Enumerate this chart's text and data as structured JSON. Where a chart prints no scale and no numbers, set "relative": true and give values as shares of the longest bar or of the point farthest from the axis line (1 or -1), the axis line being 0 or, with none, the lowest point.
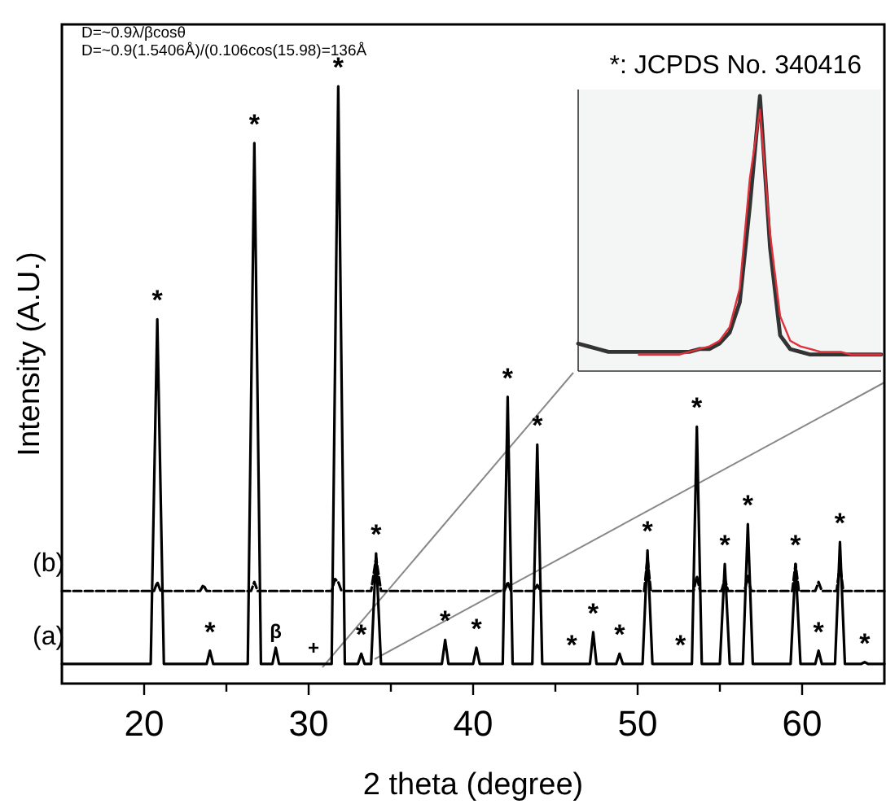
{
  "chart_data": [
    {
      "type": "line",
      "xlabel": "2 theta (degree)",
      "ylabel": "Intensity (A.U.)",
      "relative": true,
      "xlim": [
        15,
        65
      ],
      "xticks": [
        20,
        {
          "value": 25,
          "label": null
        },
        30,
        {
          "value": 35,
          "label": null
        },
        40,
        {
          "value": 45,
          "label": null
        },
        50,
        {
          "value": 55,
          "label": null
        },
        60
      ],
      "tick_labels": "x",
      "series": [
        {
          "name": "(a)",
          "color": "#000000",
          "x": [
            15,
            20.4,
            20.8,
            21.2,
            23.8,
            24.0,
            24.2,
            26.3,
            26.7,
            27.1,
            27.8,
            28.0,
            28.2,
            31.4,
            31.8,
            32.2,
            33.0,
            33.2,
            33.4,
            33.8,
            34.1,
            34.4,
            38.1,
            38.3,
            38.5,
            40.0,
            40.2,
            40.4,
            41.8,
            42.1,
            42.4,
            43.6,
            43.9,
            44.2,
            47.1,
            47.3,
            47.5,
            48.7,
            48.9,
            49.1,
            50.3,
            50.6,
            50.9,
            53.3,
            53.6,
            53.9,
            55.0,
            55.3,
            55.6,
            56.4,
            56.7,
            57.0,
            59.3,
            59.6,
            59.9,
            60.8,
            61.0,
            61.2,
            62.0,
            62.3,
            62.6,
            63.6,
            63.8,
            64.0,
            65
          ],
          "values": [
            0.033,
            0.033,
            0.61,
            0.033,
            0.033,
            0.055,
            0.033,
            0.033,
            0.905,
            0.033,
            0.033,
            0.06,
            0.033,
            0.033,
            1,
            0.033,
            0.033,
            0.05,
            0.033,
            0.033,
            0.218,
            0.033,
            0.033,
            0.073,
            0.033,
            0.033,
            0.06,
            0.033,
            0.033,
            0.48,
            0.033,
            0.033,
            0.4,
            0.033,
            0.033,
            0.086,
            0.033,
            0.033,
            0.05,
            0.033,
            0.033,
            0.223,
            0.033,
            0.033,
            0.43,
            0.033,
            0.033,
            0.2,
            0.033,
            0.033,
            0.267,
            0.033,
            0.033,
            0.2,
            0.033,
            0.033,
            0.055,
            0.033,
            0.033,
            0.237,
            0.033,
            0.033,
            0.036,
            0.033,
            0.033
          ]
        },
        {
          "name": "(b)",
          "color": "#000000",
          "line_style": "dashed",
          "x": [
            15,
            20.6,
            20.8,
            21.0,
            23.4,
            23.6,
            23.8,
            26.5,
            26.7,
            26.9,
            31.4,
            31.6,
            31.8,
            32.0,
            33.8,
            34.1,
            34.4,
            41.9,
            42.1,
            42.3,
            43.7,
            43.9,
            44.1,
            50.4,
            50.6,
            50.8,
            53.4,
            53.6,
            53.8,
            55.1,
            55.3,
            55.5,
            56.5,
            56.7,
            56.9,
            59.4,
            59.6,
            59.8,
            60.8,
            61.0,
            61.2,
            62.1,
            62.3,
            62.5,
            65
          ],
          "values": [
            0.155,
            0.155,
            0.17,
            0.155,
            0.155,
            0.165,
            0.155,
            0.155,
            0.17,
            0.155,
            0.155,
            0.175,
            0.17,
            0.155,
            0.155,
            0.21,
            0.155,
            0.155,
            0.17,
            0.155,
            0.155,
            0.165,
            0.155,
            0.155,
            0.21,
            0.155,
            0.155,
            0.18,
            0.155,
            0.155,
            0.175,
            0.155,
            0.155,
            0.18,
            0.155,
            0.155,
            0.2,
            0.155,
            0.155,
            0.17,
            0.155,
            0.155,
            0.2,
            0.155,
            0.155
          ]
        }
      ],
      "annotations": [
        "D=~0.9λ/βcosθ",
        "D=~0.9(1.5406Å)/(0.106cos(15.98)=136Å",
        "*: JCPDS No. 340416",
        {
          "text": "*",
          "x": 20.8,
          "y": 0.61
        },
        {
          "text": "*",
          "x": 24.0,
          "y": 0.055
        },
        {
          "text": "*",
          "x": 26.7,
          "y": 0.905
        },
        {
          "text": "β",
          "x": 28.0,
          "y": 0.06
        },
        {
          "text": "+",
          "x": 30.3,
          "y": 0.033
        },
        {
          "text": "*",
          "x": 31.8,
          "y": 1
        },
        {
          "text": "*",
          "x": 33.2,
          "y": 0.05
        },
        {
          "text": "*",
          "x": 34.1,
          "y": 0.218
        },
        {
          "text": "*",
          "x": 38.3,
          "y": 0.073
        },
        {
          "text": "*",
          "x": 40.2,
          "y": 0.06
        },
        {
          "text": "*",
          "x": 42.1,
          "y": 0.48
        },
        {
          "text": "*",
          "x": 43.9,
          "y": 0.4
        },
        {
          "text": "*",
          "x": 46.0,
          "y": 0.033
        },
        {
          "text": "*",
          "x": 47.3,
          "y": 0.086
        },
        {
          "text": "*",
          "x": 48.9,
          "y": 0.05
        },
        {
          "text": "*",
          "x": 50.6,
          "y": 0.223
        },
        {
          "text": "*",
          "x": 52.6,
          "y": 0.033
        },
        {
          "text": "*",
          "x": 53.6,
          "y": 0.43
        },
        {
          "text": "*",
          "x": 55.3,
          "y": 0.2
        },
        {
          "text": "*",
          "x": 56.7,
          "y": 0.267
        },
        {
          "text": "*",
          "x": 59.6,
          "y": 0.2
        },
        {
          "text": "*",
          "x": 61.0,
          "y": 0.055
        },
        {
          "text": "*",
          "x": 62.3,
          "y": 0.237
        },
        {
          "text": "*",
          "x": 63.8,
          "y": 0.036
        }
      ]
    },
    {
      "type": "line",
      "relative": true,
      "tick_labels": false,
      "categories": [
        null,
        null,
        null,
        null,
        null,
        null,
        null,
        null,
        null,
        null,
        null,
        null,
        null,
        null,
        null,
        null,
        null,
        null,
        null,
        null,
        null,
        null,
        null,
        null,
        null,
        null,
        null,
        null,
        null,
        null,
        null
      ],
      "series": [
        {
          "color": "#333333",
          "values": [
            0.1,
            0.09,
            0.08,
            0.07,
            0.07,
            0.07,
            0.07,
            0.07,
            0.07,
            0.07,
            0.07,
            0.07,
            0.08,
            0.08,
            0.1,
            0.14,
            0.25,
            0.6,
            1,
            0.45,
            0.13,
            0.08,
            0.07,
            0.06,
            0.06,
            0.06,
            0.06,
            0.06,
            0.06,
            0.06,
            0.06
          ]
        },
        {
          "color": "#e0303a",
          "values": [
            null,
            null,
            null,
            null,
            null,
            null,
            0.06,
            0.06,
            0.06,
            0.06,
            0.06,
            0.07,
            0.08,
            0.09,
            0.11,
            0.16,
            0.3,
            0.7,
            0.95,
            0.5,
            0.2,
            0.11,
            0.09,
            0.08,
            0.07,
            0.07,
            0.07,
            0.06,
            0.06,
            0.06,
            0.06
          ]
        }
      ]
    }
  ]
}
